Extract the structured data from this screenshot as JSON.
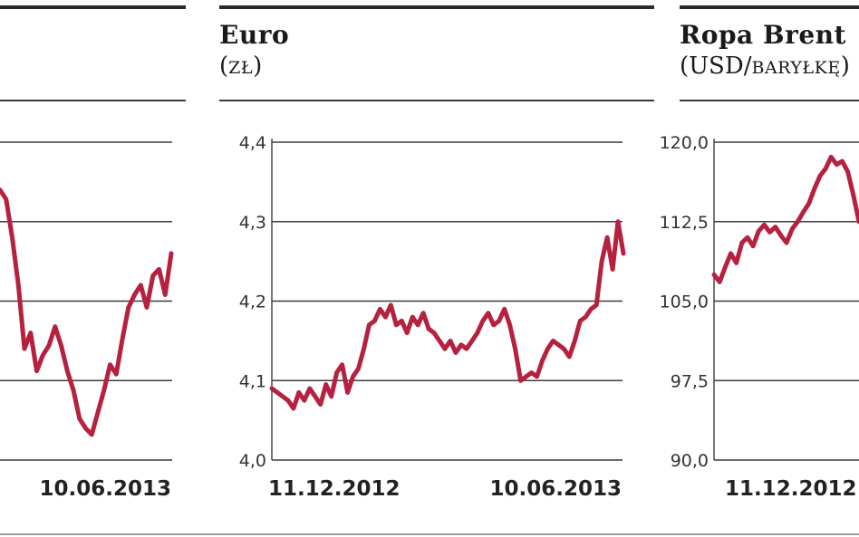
{
  "charts": [
    {
      "id": "left",
      "title": "",
      "unit_main": "",
      "unit_small": "",
      "ylim": [
        0,
        100
      ],
      "yticks": [],
      "xlabels": [
        "",
        "10.06.2013"
      ],
      "color": "#b5213f",
      "series_y": [
        85,
        82,
        70,
        55,
        35,
        40,
        28,
        33,
        36,
        42,
        36,
        28,
        22,
        13,
        10,
        8,
        15,
        22,
        30,
        27,
        38,
        48,
        52,
        55,
        48,
        58,
        60,
        52,
        65
      ]
    },
    {
      "id": "euro",
      "title": "Euro",
      "unit_main": "(",
      "unit_small": "ZŁ",
      "unit_close": ")",
      "ylim": [
        4.0,
        4.4
      ],
      "yticks": [
        "4,4",
        "4,3",
        "4,2",
        "4,1",
        "4,0"
      ],
      "xlabels": [
        "11.12.2012",
        "10.06.2013"
      ],
      "color": "#b5213f",
      "series_y": [
        4.09,
        4.085,
        4.08,
        4.075,
        4.065,
        4.085,
        4.075,
        4.09,
        4.08,
        4.07,
        4.095,
        4.08,
        4.11,
        4.12,
        4.085,
        4.105,
        4.115,
        4.14,
        4.17,
        4.175,
        4.19,
        4.18,
        4.195,
        4.17,
        4.175,
        4.16,
        4.18,
        4.17,
        4.185,
        4.165,
        4.16,
        4.15,
        4.14,
        4.15,
        4.135,
        4.145,
        4.14,
        4.15,
        4.16,
        4.175,
        4.185,
        4.17,
        4.175,
        4.19,
        4.17,
        4.14,
        4.1,
        4.105,
        4.11,
        4.105,
        4.125,
        4.14,
        4.15,
        4.145,
        4.14,
        4.13,
        4.15,
        4.175,
        4.18,
        4.19,
        4.195,
        4.25,
        4.28,
        4.24,
        4.3,
        4.26
      ]
    },
    {
      "id": "brent",
      "title": "Ropa Brent",
      "unit_main": "(USD/",
      "unit_small": "BARYŁKĘ",
      "unit_close": ")",
      "ylim": [
        90.0,
        120.0
      ],
      "yticks": [
        "120,0",
        "112,5",
        "105,0",
        "97,5",
        "90,0"
      ],
      "xlabels": [
        "11.12.2012",
        ""
      ],
      "color": "#b5213f",
      "series_y": [
        107.5,
        106.8,
        108.2,
        109.5,
        108.6,
        110.5,
        111.0,
        110.2,
        111.6,
        112.2,
        111.5,
        112.0,
        111.2,
        110.5,
        111.8,
        112.5,
        113.4,
        114.2,
        115.6,
        116.8,
        117.5,
        118.6,
        117.9,
        118.2,
        117.2,
        115.0,
        112.5
      ]
    }
  ]
}
